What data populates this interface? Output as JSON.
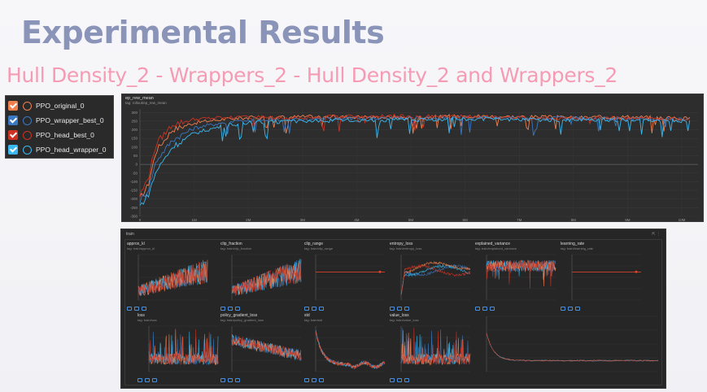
{
  "slide": {
    "title": "Experimental Results",
    "subtitle": "Hull Density_2  -  Wrappers_2  -  Hull Density_2 and Wrappers_2"
  },
  "legend": {
    "items": [
      {
        "label": "PPO_original_0",
        "color": "#f07f4e"
      },
      {
        "label": "PPO_wrapper_best_0",
        "color": "#3a78c2"
      },
      {
        "label": "PPO_head_best_0",
        "color": "#cc3322"
      },
      {
        "label": "PPO_head_wrapper_0",
        "color": "#3ab8ee"
      }
    ]
  },
  "main_chart": {
    "title": "ep_rew_mean",
    "tag": "tag: rollout/ep_rew_mean"
  },
  "train": {
    "header": "train",
    "icons": "⇱ ⋮",
    "charts": [
      {
        "title": "approx_kl",
        "tag": "tag: train/approx_kl"
      },
      {
        "title": "clip_fraction",
        "tag": "tag: train/clip_fraction"
      },
      {
        "title": "clip_range",
        "tag": "tag: train/clip_range"
      },
      {
        "title": "entropy_loss",
        "tag": "tag: train/entropy_loss"
      },
      {
        "title": "explained_variance",
        "tag": "tag: train/explained_variance"
      },
      {
        "title": "learning_rate",
        "tag": "tag: train/learning_rate"
      },
      {
        "title": "loss",
        "tag": "tag: train/loss"
      },
      {
        "title": "policy_gradient_loss",
        "tag": "tag: train/policy_gradient_loss"
      },
      {
        "title": "std",
        "tag": "tag: train/std"
      },
      {
        "title": "value_loss",
        "tag": "tag: train/value_loss"
      }
    ]
  },
  "chart_data": {
    "type": "line",
    "title": "ep_rew_mean",
    "xlabel": "",
    "ylabel": "",
    "x_ticks": [
      "0",
      "1M",
      "2M",
      "3M",
      "4M",
      "5M",
      "6M",
      "7M",
      "8M",
      "9M",
      "10M"
    ],
    "y_ticks": [
      300,
      250,
      200,
      150,
      100,
      50,
      0,
      -50,
      -100,
      -150,
      -200,
      -250,
      -300
    ],
    "xlim": [
      0,
      10300000
    ],
    "ylim": [
      -300,
      320
    ],
    "grid": true,
    "series": [
      {
        "name": "PPO_original_0",
        "color": "#f07f4e",
        "x": [
          0,
          150000,
          300000,
          600000,
          1000000,
          1500000,
          2000000,
          3000000,
          4000000,
          5000000,
          6000000,
          7000000,
          8000000,
          9000000,
          10000000
        ],
        "y": [
          -200,
          -120,
          80,
          200,
          240,
          260,
          270,
          275,
          275,
          270,
          280,
          275,
          270,
          275,
          265
        ]
      },
      {
        "name": "PPO_wrapper_best_0",
        "color": "#3a78c2",
        "x": [
          0,
          150000,
          300000,
          600000,
          1000000,
          1500000,
          2000000,
          3000000,
          4000000,
          5000000,
          6000000,
          7000000,
          8000000,
          9000000,
          10000000
        ],
        "y": [
          -210,
          -150,
          20,
          140,
          210,
          240,
          255,
          260,
          265,
          268,
          270,
          268,
          265,
          262,
          260
        ]
      },
      {
        "name": "PPO_head_best_0",
        "color": "#cc3322",
        "x": [
          0,
          150000,
          300000,
          600000,
          1000000,
          1500000,
          2000000,
          3000000,
          4000000,
          5000000,
          6000000,
          7000000,
          8000000,
          9000000,
          10000000
        ],
        "y": [
          -180,
          -80,
          120,
          230,
          260,
          270,
          275,
          270,
          280,
          278,
          275,
          270,
          265,
          268,
          262
        ]
      },
      {
        "name": "PPO_head_wrapper_0",
        "color": "#3ab8ee",
        "x": [
          0,
          150000,
          300000,
          600000,
          1000000,
          1500000,
          2000000,
          3000000,
          4000000,
          5000000,
          6000000,
          7000000,
          8000000,
          9000000,
          10000000
        ],
        "y": [
          -240,
          -180,
          -40,
          100,
          180,
          220,
          240,
          250,
          255,
          258,
          262,
          260,
          255,
          258,
          250
        ]
      }
    ]
  }
}
